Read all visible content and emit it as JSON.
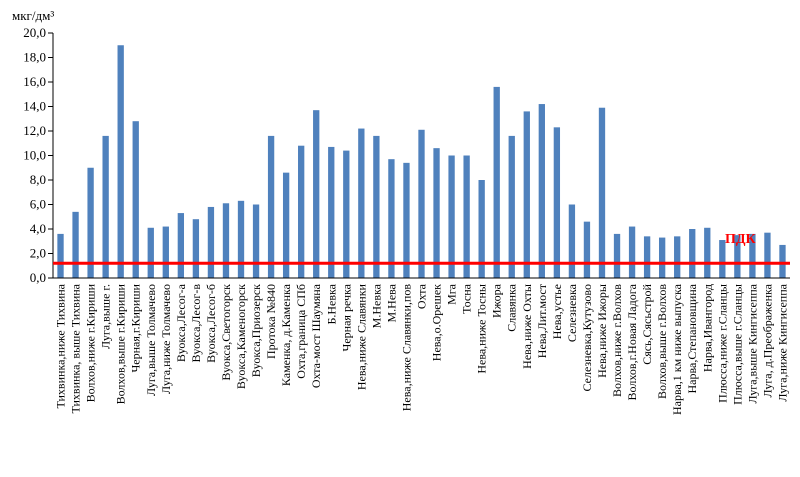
{
  "chart_data": {
    "type": "bar",
    "title": "",
    "unit_label": "мкг/дм³",
    "xlabel": "",
    "ylabel": "",
    "ylim": [
      0,
      20
    ],
    "yticks": [
      "0,0",
      "2,0",
      "4,0",
      "6,0",
      "8,0",
      "10,0",
      "12,0",
      "14,0",
      "16,0",
      "18,0",
      "20,0"
    ],
    "grid": false,
    "legend": "none",
    "bar_color": "#4f81bd",
    "reference_line": {
      "label": "ПДК",
      "value": 1.2,
      "color": "#ff0000"
    },
    "categories": [
      "Тихвинка,ниже Тихвина",
      "Тихвинка, выше Тихвина",
      "Волхов,ниже г.Кириши",
      "Луга,выше г.",
      "Волхов,выше г.Кириши",
      "Черная,г.Кириши",
      "Луга,выше Толмачево",
      "Луга,ниже Толмачево",
      "Вуокса,Лесог-а",
      "Вуокса,Лесог-в",
      "Вуокса,Лесог-б",
      "Вуокса,Светогорск",
      "Вуокса,Каменогорск",
      "Вуокса,Приозерск",
      "Протока №840",
      "Каменка, д.Каменка",
      "Охта,граница СПб",
      "Охта-мост Шаумяна",
      "Б.Невка",
      "Черная речка",
      "Нева,ниже Славянки",
      "М.Невка",
      "М.Нева",
      "Нева,ниже Славянки,пов",
      "Охта",
      "Нева,о.Орешек",
      "Мга",
      "Тосна",
      "Нева,ниже Тосны",
      "Ижора",
      "Славянка",
      "Нева,ниже Охты",
      "Нева,Лит.мост",
      "Нева,устье",
      "Селезневка",
      "Селезневка,Кутузово",
      "Нева,ниже Ижоры",
      "Волхов,ниже г.Волхов",
      "Волхов,г.Новая Ладога",
      "Сясь,Сясьстрой",
      "Волхов,выше г.Волхов",
      "Нарва,1 км ниже выпуска",
      "Нарва,Степановщина",
      "Нарва,Ивангород",
      "Плюсса,ниже г.Сланцы",
      "Плюсса,выше г.Сланцы",
      "Луга,выше Кингисеппа",
      "Луга, д.Преображенка",
      "Луга,ниже Кингисеппа"
    ],
    "values": [
      3.6,
      5.4,
      9.0,
      11.6,
      19.0,
      12.8,
      4.1,
      4.2,
      5.3,
      4.8,
      5.8,
      6.1,
      6.3,
      6.0,
      11.6,
      8.6,
      10.8,
      13.7,
      10.7,
      10.4,
      12.2,
      11.6,
      9.7,
      9.4,
      12.1,
      10.6,
      10.0,
      10.0,
      8.0,
      15.6,
      11.6,
      13.6,
      14.2,
      12.3,
      6.0,
      4.6,
      13.9,
      3.6,
      4.2,
      3.4,
      3.3,
      3.4,
      4.0,
      4.1,
      3.1,
      3.5,
      3.6,
      3.7,
      2.7
    ]
  }
}
